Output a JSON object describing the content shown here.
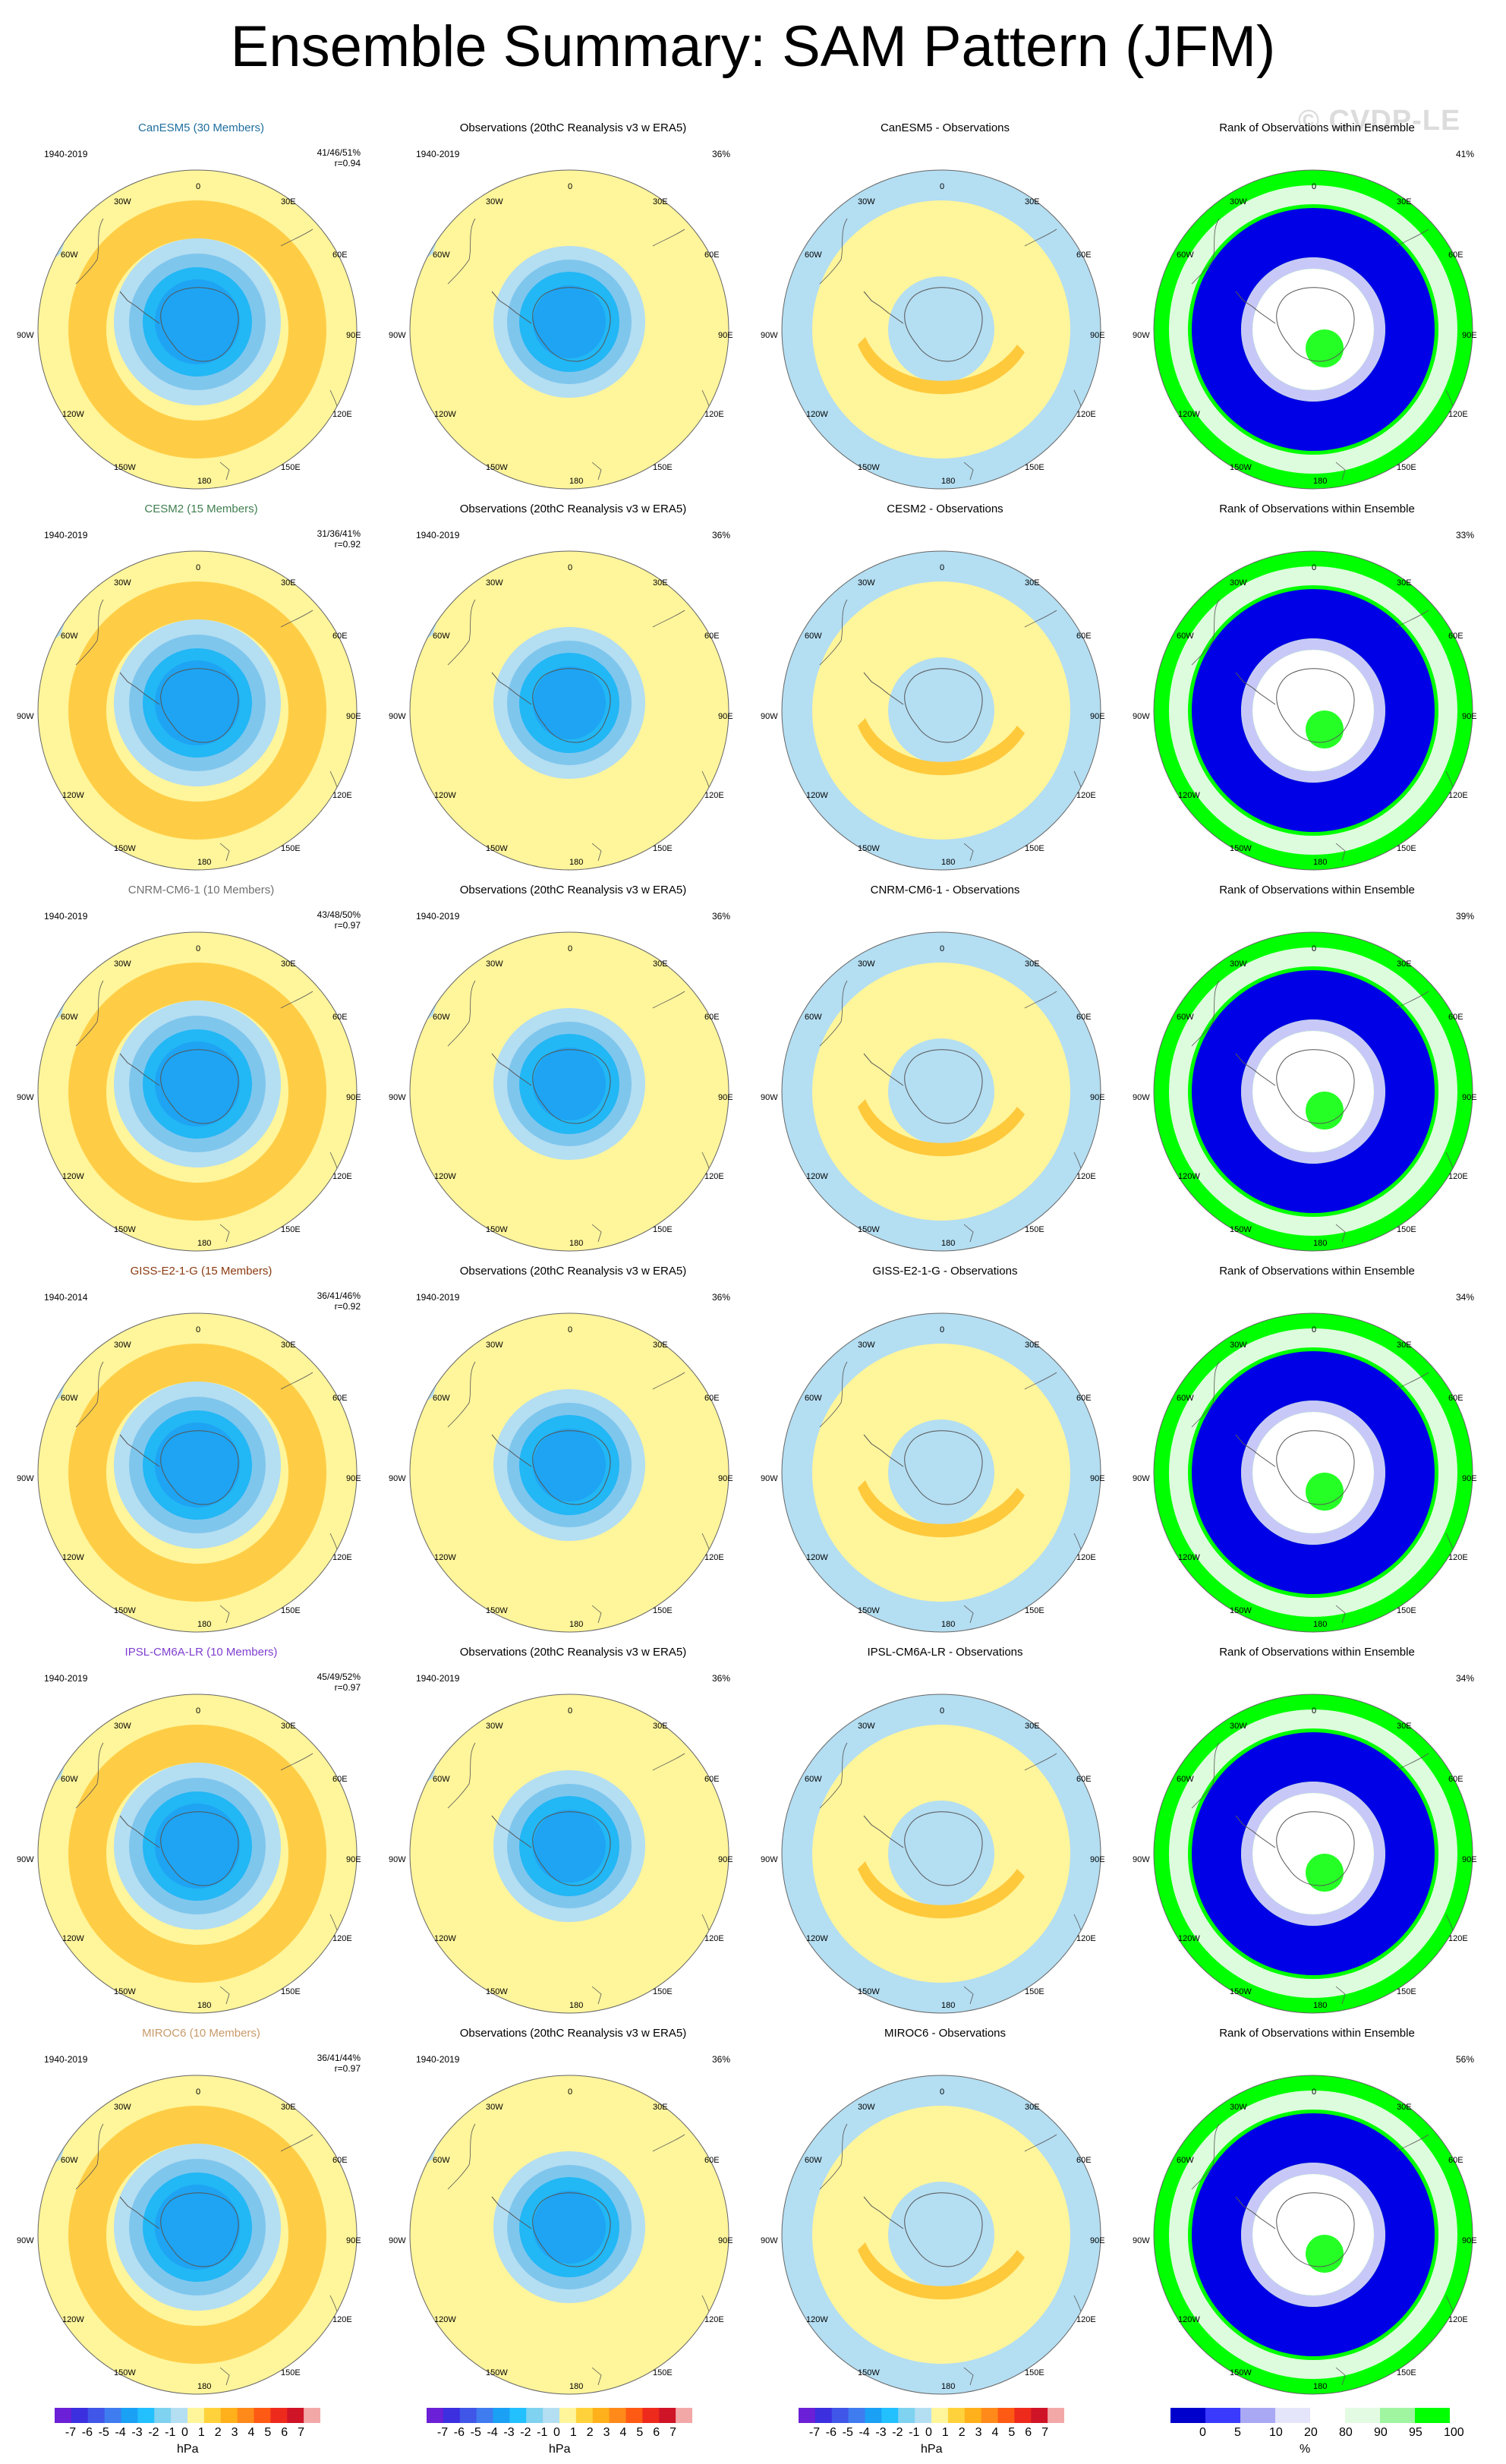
{
  "title": "Ensemble Summary: SAM Pattern (JFM)",
  "watermark": "© CVDP-LE",
  "lon_labels": [
    "0",
    "30E",
    "60E",
    "90E",
    "120E",
    "150E",
    "180",
    "150W",
    "120W",
    "90W",
    "60W",
    "30W"
  ],
  "obs_title": "Observations (20thC Reanalysis v3 w ERA5)",
  "rank_title": "Rank of Observations within Ensemble",
  "colorbar": {
    "hpa_labels": [
      "-7",
      "-6",
      "-5",
      "-4",
      "-3",
      "-2",
      "-1",
      "0",
      "1",
      "2",
      "3",
      "4",
      "5",
      "6",
      "7"
    ],
    "hpa_unit": "hPa",
    "pct_labels": [
      "0",
      "5",
      "10",
      "20",
      "80",
      "90",
      "95",
      "100"
    ],
    "pct_unit": "%",
    "hpa_colors": [
      "#6b1fd6",
      "#3b2fe0",
      "#3f56e8",
      "#3f7cf0",
      "#1aa0f5",
      "#22c0ff",
      "#7fd2f0",
      "#b4def2",
      "#fff59b",
      "#ffd23c",
      "#ffb01a",
      "#ff8a1a",
      "#ff5a14",
      "#ee2a1c",
      "#d01428",
      "#f3a8a8"
    ],
    "pct_colors": [
      "#0000cc",
      "#3a3aff",
      "#a8a8f5",
      "#e4e4fb",
      "#ffffff",
      "#e2fbe2",
      "#a0f5a0",
      "#00ff00"
    ]
  },
  "colors": {
    "yellow": "#fff59b",
    "orange": "#ffc93c",
    "deep_orange": "#f9a21c",
    "light_blue": "#b4def2",
    "mid_blue": "#7fc6ed",
    "blue": "#22b7f5",
    "dark_blue": "#1a8ff2",
    "rank_blue": "#0000e6",
    "rank_green": "#00ff00",
    "rank_lav": "#c8c8f8",
    "rank_mint": "#ddfbdd"
  },
  "rows": [
    {
      "model_title": "CanESM5 (30 Members)",
      "model_color": "#1f6f9f",
      "period": "1940-2019",
      "stats_pct": "41/46/51%",
      "stats_r": "r=0.94",
      "obs_period": "1940-2019",
      "obs_pct": "36%",
      "diff_title": "CanESM5 - Observations",
      "rank_pct": "41%"
    },
    {
      "model_title": "CESM2 (15 Members)",
      "model_color": "#3f7f4f",
      "period": "1940-2019",
      "stats_pct": "31/36/41%",
      "stats_r": "r=0.92",
      "obs_period": "1940-2019",
      "obs_pct": "36%",
      "diff_title": "CESM2 - Observations",
      "rank_pct": "33%"
    },
    {
      "model_title": "CNRM-CM6-1 (10 Members)",
      "model_color": "#707070",
      "period": "1940-2019",
      "stats_pct": "43/48/50%",
      "stats_r": "r=0.97",
      "obs_period": "1940-2019",
      "obs_pct": "36%",
      "diff_title": "CNRM-CM6-1 - Observations",
      "rank_pct": "39%"
    },
    {
      "model_title": "GISS-E2-1-G (15 Members)",
      "model_color": "#8b3a10",
      "period": "1940-2014",
      "stats_pct": "36/41/46%",
      "stats_r": "r=0.92",
      "obs_period": "1940-2019",
      "obs_pct": "36%",
      "diff_title": "GISS-E2-1-G - Observations",
      "rank_pct": "34%"
    },
    {
      "model_title": "IPSL-CM6A-LR (10 Members)",
      "model_color": "#7f3fcf",
      "period": "1940-2019",
      "stats_pct": "45/49/52%",
      "stats_r": "r=0.97",
      "obs_period": "1940-2019",
      "obs_pct": "36%",
      "diff_title": "IPSL-CM6A-LR - Observations",
      "rank_pct": "34%"
    },
    {
      "model_title": "MIROC6 (10 Members)",
      "model_color": "#c89a6a",
      "period": "1940-2019",
      "stats_pct": "36/41/44%",
      "stats_r": "r=0.97",
      "obs_period": "1940-2019",
      "obs_pct": "36%",
      "diff_title": "MIROC6 - Observations",
      "rank_pct": "56%"
    }
  ]
}
